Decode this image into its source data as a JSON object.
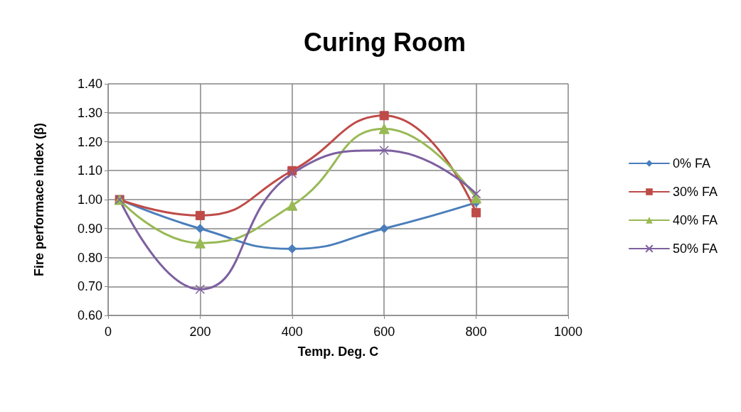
{
  "chart_data": {
    "type": "line",
    "title": "Curing Room",
    "xlabel": "Temp. Deg. C",
    "ylabel": "Fire performace index (β)",
    "x": [
      25,
      200,
      400,
      600,
      800
    ],
    "series": [
      {
        "name": "0% FA",
        "color": "#4a7ebb",
        "marker": "diamond",
        "values": [
          1.0,
          0.9,
          0.83,
          0.9,
          0.99
        ]
      },
      {
        "name": "30% FA",
        "color": "#be4b48",
        "marker": "square",
        "values": [
          1.0,
          0.945,
          1.1,
          1.29,
          0.955
        ]
      },
      {
        "name": "40% FA",
        "color": "#98b954",
        "marker": "triangle",
        "values": [
          1.0,
          0.85,
          0.98,
          1.245,
          1.005
        ]
      },
      {
        "name": "50% FA",
        "color": "#7d60a0",
        "marker": "cross",
        "values": [
          1.0,
          0.69,
          1.09,
          1.17,
          1.02
        ]
      }
    ],
    "xlim": [
      0,
      1000
    ],
    "xticks": [
      0,
      200,
      400,
      600,
      800,
      1000
    ],
    "ylim": [
      0.6,
      1.4
    ],
    "yticks": [
      {
        "value": 0.6,
        "label": "0.60"
      },
      {
        "value": 0.7,
        "label": "0.70"
      },
      {
        "value": 0.8,
        "label": "0.80"
      },
      {
        "value": 0.9,
        "label": "0.90"
      },
      {
        "value": 1.0,
        "label": "1.00"
      },
      {
        "value": 1.1,
        "label": "1.10"
      },
      {
        "value": 1.2,
        "label": "1.20"
      },
      {
        "value": 1.3,
        "label": "1.30"
      },
      {
        "value": 1.4,
        "label": "1.40"
      }
    ],
    "grid": true,
    "legend": "right",
    "line_style": "solid"
  }
}
